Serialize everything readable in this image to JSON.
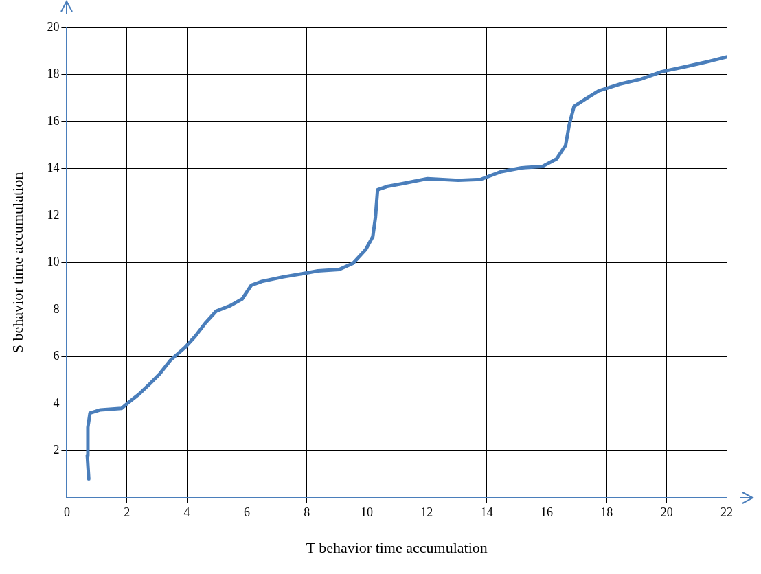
{
  "chart_data": {
    "type": "line",
    "xlabel": "T behavior time accumulation",
    "ylabel": "S behavior time accumulation",
    "xlim": [
      0,
      22
    ],
    "xticks": [
      0,
      2,
      4,
      6,
      8,
      10,
      12,
      14,
      16,
      18,
      20,
      22
    ],
    "ylim": [
      0,
      20
    ],
    "yticks": [
      {
        "value": 0,
        "label": null
      },
      2,
      4,
      6,
      8,
      10,
      12,
      14,
      16,
      18,
      20
    ],
    "grid": true,
    "legend": false,
    "marker": "none",
    "line_style": "solid",
    "series": [
      {
        "color": "#4a7ebb",
        "x": [
          0.73,
          0.68,
          0.7,
          0.77,
          1.12,
          1.82,
          2.06,
          2.4,
          2.76,
          3.1,
          3.46,
          3.93,
          4.28,
          4.63,
          4.98,
          5.45,
          5.85,
          6.15,
          6.5,
          7.2,
          7.9,
          8.37,
          9.08,
          9.54,
          9.96,
          10.2,
          10.29,
          10.36,
          10.71,
          11.18,
          12.02,
          13.05,
          13.8,
          14.46,
          15.16,
          15.86,
          16.33,
          16.63,
          16.75,
          16.91,
          17.26,
          17.73,
          18.43,
          19.13,
          19.84,
          20.59,
          21.39,
          22
        ],
        "values": [
          0.8,
          1.8,
          3.0,
          3.6,
          3.74,
          3.8,
          4.06,
          4.4,
          4.84,
          5.28,
          5.86,
          6.38,
          6.87,
          7.45,
          7.94,
          8.17,
          8.46,
          9.04,
          9.2,
          9.39,
          9.54,
          9.65,
          9.71,
          9.97,
          10.55,
          11.1,
          11.94,
          13.1,
          13.25,
          13.36,
          13.57,
          13.5,
          13.54,
          13.86,
          14.03,
          14.09,
          14.41,
          14.99,
          15.86,
          16.64,
          16.93,
          17.3,
          17.59,
          17.8,
          18.12,
          18.32,
          18.55,
          18.75
        ]
      }
    ]
  }
}
